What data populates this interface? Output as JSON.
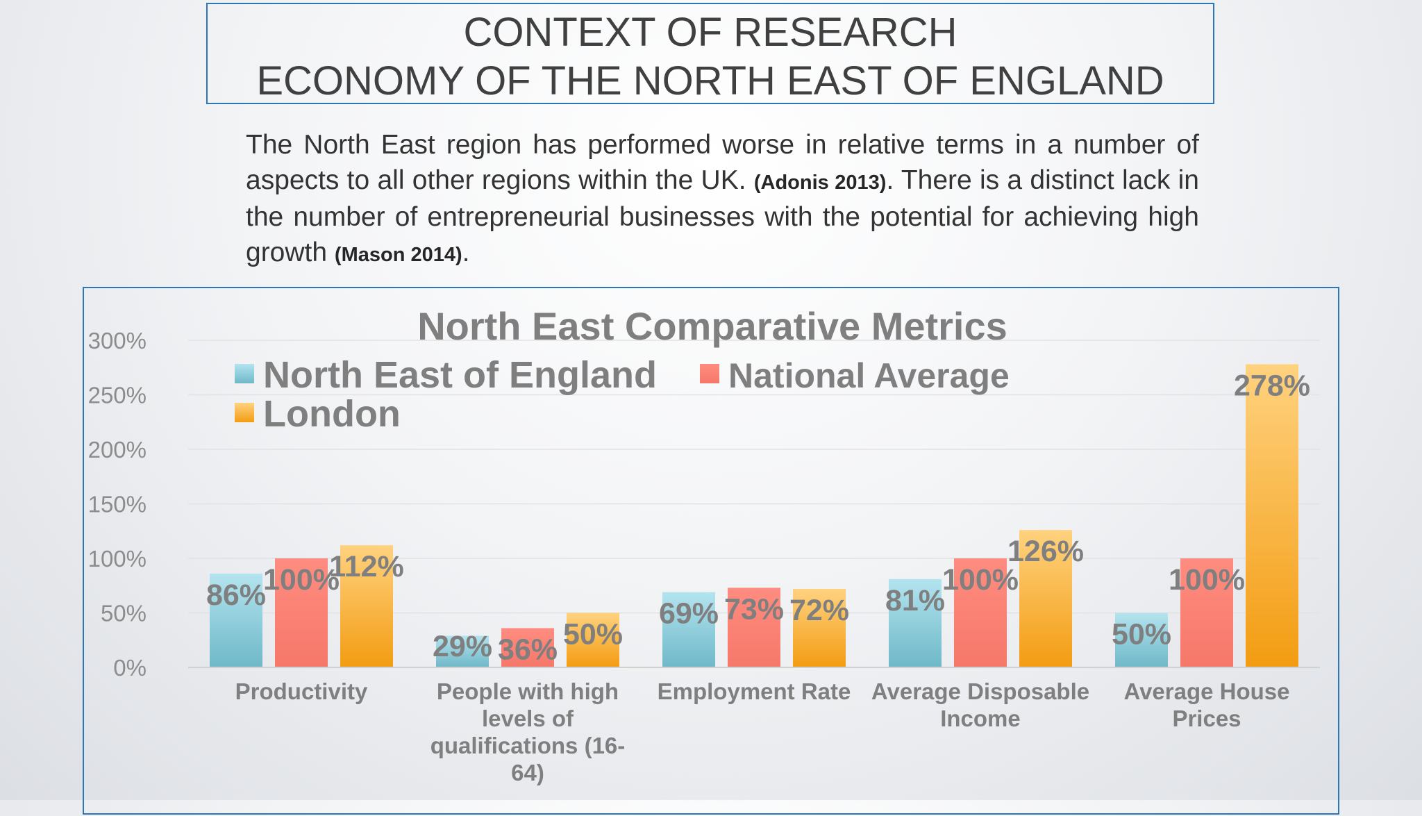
{
  "header": {
    "title_line1": "CONTEXT OF RESEARCH",
    "title_line2": "ECONOMY OF THE NORTH EAST OF ENGLAND"
  },
  "intro": {
    "text_part1": "The North East region has performed worse in relative terms in a number of aspects to all other regions within the UK. ",
    "citation1": "(Adonis 2013)",
    "text_part2": ". There is a distinct lack in the number of entrepreneurial businesses with the potential for achieving high growth ",
    "citation2": "(Mason 2014)",
    "text_part3": "."
  },
  "chart_data": {
    "type": "bar",
    "title": "North East Comparative Metrics",
    "xlabel": "",
    "ylabel": "",
    "ylim": [
      0,
      3.0
    ],
    "yticks": [
      "0%",
      "50%",
      "100%",
      "150%",
      "200%",
      "250%",
      "300%"
    ],
    "categories": [
      "Productivity",
      "People with high levels of qualifications (16-64)",
      "Employment Rate",
      "Average Disposable Income",
      "Average House Prices"
    ],
    "category_label_lines": [
      [
        "Productivity"
      ],
      [
        "People with high",
        "levels of",
        "qualifications (16-",
        "64)"
      ],
      [
        "Employment Rate"
      ],
      [
        "Average Disposable",
        "Income"
      ],
      [
        "Average House",
        "Prices"
      ]
    ],
    "series": [
      {
        "name": "North East of England",
        "values": [
          0.86,
          0.29,
          0.69,
          0.81,
          0.5
        ],
        "labels": [
          "86%",
          "29%",
          "69%",
          "81%",
          "50%"
        ],
        "color": "#6fb8c8",
        "color_light": "#b3e4ef"
      },
      {
        "name": "National Average",
        "values": [
          1.0,
          0.36,
          0.73,
          1.0,
          1.0
        ],
        "labels": [
          "100%",
          "36%",
          "73%",
          "100%",
          "100%"
        ],
        "color": "#f5786a",
        "color_light": "#ff8c80"
      },
      {
        "name": "London",
        "values": [
          1.12,
          0.5,
          0.72,
          1.26,
          2.78
        ],
        "labels": [
          "112%",
          "50%",
          "72%",
          "126%",
          "278%"
        ],
        "color": "#f39c12",
        "color_light": "#ffd27f"
      }
    ],
    "legend_position": "top-left",
    "grid": true
  }
}
